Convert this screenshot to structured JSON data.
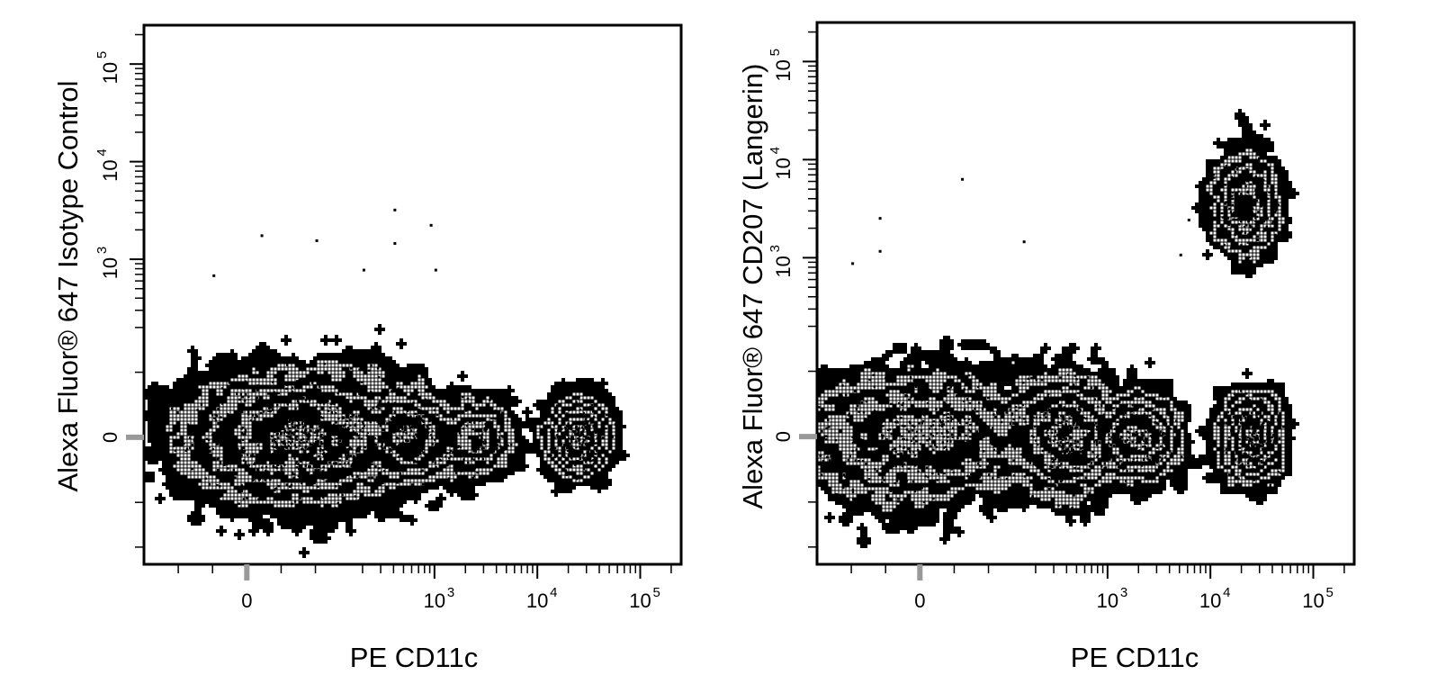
{
  "chart_data": [
    {
      "type": "contour",
      "panel": "left",
      "xlabel": "PE  CD11c",
      "ylabel": "Alexa Fluor® 647 Isotype Control",
      "x_scale": "biexponential",
      "y_scale": "biexponential",
      "xlim": [
        -150,
        250000
      ],
      "ylim": [
        -300,
        250000
      ],
      "x_ticks": [
        {
          "value": 0,
          "label": "0"
        },
        {
          "value": 1000,
          "label": "10",
          "exp": "3"
        },
        {
          "value": 10000,
          "label": "10",
          "exp": "4"
        },
        {
          "value": 100000,
          "label": "10",
          "exp": "5"
        }
      ],
      "y_ticks": [
        {
          "value": 0,
          "label": "0"
        },
        {
          "value": 1000,
          "label": "10",
          "exp": "3"
        },
        {
          "value": 10000,
          "label": "10",
          "exp": "4"
        },
        {
          "value": 100000,
          "label": "10",
          "exp": "5"
        }
      ],
      "populations": [
        {
          "x": 80,
          "y": 0,
          "x_spread": 95,
          "y_spread": 45,
          "weight": 0.62
        },
        {
          "x": 600,
          "y": 0,
          "x_spread": 300,
          "y_spread": 30,
          "weight": 0.12
        },
        {
          "x": 2500,
          "y": 0,
          "x_spread": 1200,
          "y_spread": 25,
          "weight": 0.08
        },
        {
          "x": 25000,
          "y": 0,
          "x_spread": 9000,
          "y_spread": 25,
          "weight": 0.18
        }
      ],
      "outliers": [
        [
          20,
          1800
        ],
        [
          100,
          1600
        ],
        [
          400,
          3300
        ],
        [
          400,
          1500
        ],
        [
          900,
          2300
        ],
        [
          -50,
          700
        ],
        [
          200,
          800
        ],
        [
          1000,
          800
        ]
      ]
    },
    {
      "type": "contour",
      "panel": "right",
      "xlabel": "PE  CD11c",
      "ylabel": "Alexa Fluor® 647 CD207 (Langerin)",
      "x_scale": "biexponential",
      "y_scale": "biexponential",
      "xlim": [
        -150,
        250000
      ],
      "ylim": [
        -300,
        250000
      ],
      "x_ticks": [
        {
          "value": 0,
          "label": "0"
        },
        {
          "value": 1000,
          "label": "10",
          "exp": "3"
        },
        {
          "value": 10000,
          "label": "10",
          "exp": "4"
        },
        {
          "value": 100000,
          "label": "10",
          "exp": "5"
        }
      ],
      "y_ticks": [
        {
          "value": 0,
          "label": "0"
        },
        {
          "value": 1000,
          "label": "10",
          "exp": "3"
        },
        {
          "value": 10000,
          "label": "10",
          "exp": "4"
        },
        {
          "value": 100000,
          "label": "10",
          "exp": "5"
        }
      ],
      "populations": [
        {
          "x": 0,
          "y": 0,
          "x_spread": 100,
          "y_spread": 45,
          "weight": 0.38
        },
        {
          "x": 400,
          "y": 0,
          "x_spread": 250,
          "y_spread": 40,
          "weight": 0.22
        },
        {
          "x": 2000,
          "y": 0,
          "x_spread": 1000,
          "y_spread": 30,
          "weight": 0.14
        },
        {
          "x": 25000,
          "y": 0,
          "x_spread": 9000,
          "y_spread": 30,
          "weight": 0.16
        },
        {
          "x": 22000,
          "y": 3500,
          "x_spread": 9000,
          "y_spread": 2500,
          "weight": 0.1
        }
      ],
      "outliers": [
        [
          -60,
          2600
        ],
        [
          -60,
          1200
        ],
        [
          60,
          6500
        ],
        [
          150,
          1500
        ],
        [
          -100,
          900
        ],
        [
          5000,
          1100
        ],
        [
          6000,
          2500
        ],
        [
          14000,
          11000
        ]
      ]
    }
  ]
}
